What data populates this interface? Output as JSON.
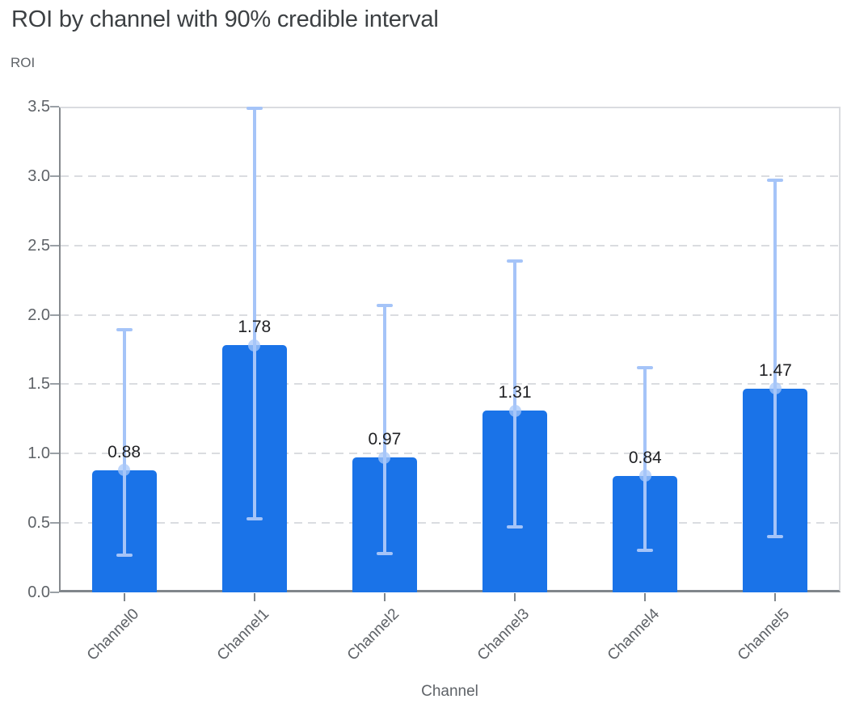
{
  "page": {
    "title": "ROI by channel with 90% credible interval"
  },
  "chart_data": {
    "type": "bar",
    "title": "ROI by channel with 90% credible interval",
    "xlabel": "Channel",
    "ylabel": "ROI",
    "categories": [
      "Channel0",
      "Channel1",
      "Channel2",
      "Channel3",
      "Channel4",
      "Channel5"
    ],
    "values": [
      0.88,
      1.78,
      0.97,
      1.31,
      0.84,
      1.47
    ],
    "value_labels": [
      "0.88",
      "1.78",
      "0.97",
      "1.31",
      "0.84",
      "1.47"
    ],
    "ci_level": "90%",
    "ci_lower": [
      0.27,
      0.53,
      0.28,
      0.47,
      0.3,
      0.4
    ],
    "ci_upper": [
      1.89,
      3.49,
      2.07,
      2.39,
      1.62,
      2.97
    ],
    "ylim": [
      0,
      3.5
    ],
    "y_tick_step": 0.5,
    "y_tick_labels": [
      "0.0",
      "0.5",
      "1.0",
      "1.5",
      "2.0",
      "2.5",
      "3.0",
      "3.5"
    ],
    "grid": "horizontal-dashed",
    "legend": "none"
  },
  "colors": {
    "bar": "#1A73E8",
    "error_bar": "#A5C4F8",
    "marker": "rgba(167,199,250,0.75)",
    "title_text": "#3C4043",
    "axis_text": "#5F6368",
    "value_label_text": "#202124",
    "gridline": "#DADCE0",
    "axis_line": "#80868B"
  }
}
